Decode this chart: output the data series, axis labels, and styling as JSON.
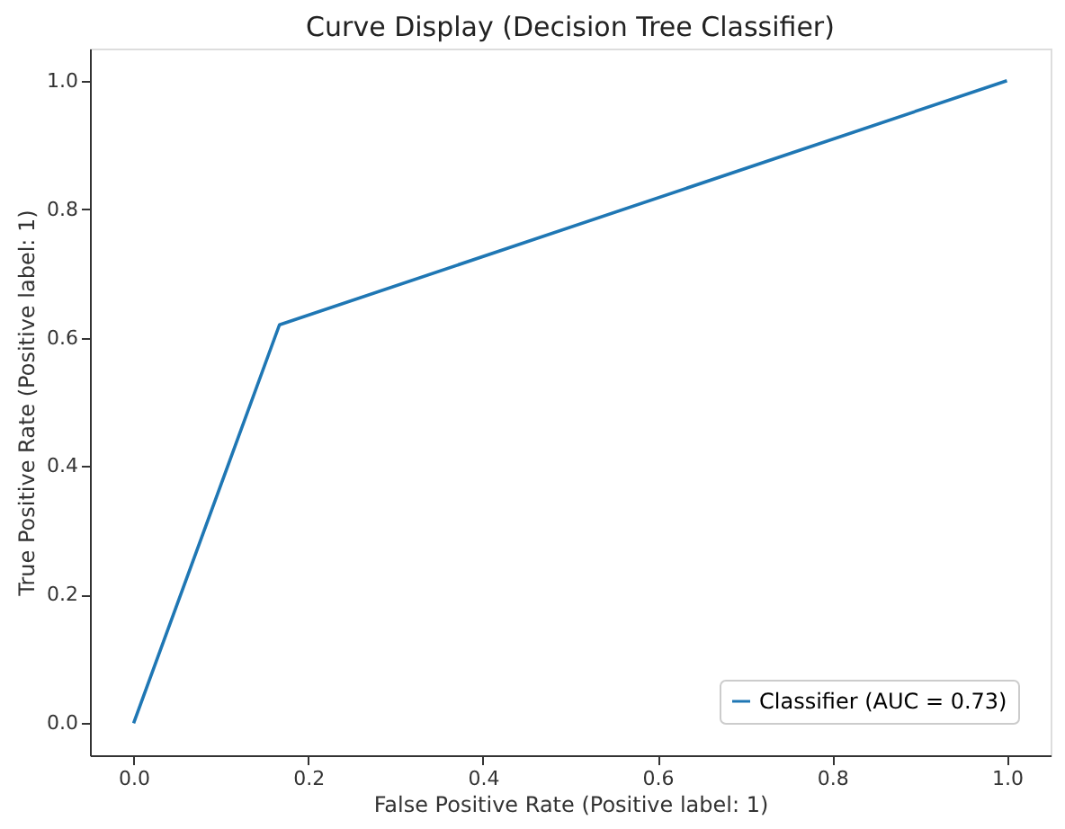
{
  "chart_data": {
    "type": "line",
    "title": "Curve Display (Decision Tree Classifier)",
    "xlabel": "False Positive Rate (Positive label: 1)",
    "ylabel": "True Positive Rate (Positive label: 1)",
    "x": [
      0,
      0.167,
      1
    ],
    "series": [
      {
        "name": "Classifier (AUC = 0.73)",
        "color": "#1f77b4",
        "values": [
          0,
          0.62,
          1
        ]
      }
    ],
    "xlim": [
      -0.05,
      1.05
    ],
    "ylim": [
      -0.05,
      1.05
    ],
    "xticks": [
      {
        "value": 0,
        "label": "0.0"
      },
      {
        "value": 0.2,
        "label": "0.2"
      },
      {
        "value": 0.4,
        "label": "0.4"
      },
      {
        "value": 0.6,
        "label": "0.6"
      },
      {
        "value": 0.8,
        "label": "0.8"
      },
      {
        "value": 1,
        "label": "1.0"
      }
    ],
    "yticks": [
      {
        "value": 0,
        "label": "0.0"
      },
      {
        "value": 0.2,
        "label": "0.2"
      },
      {
        "value": 0.4,
        "label": "0.4"
      },
      {
        "value": 0.6,
        "label": "0.6"
      },
      {
        "value": 0.8,
        "label": "0.8"
      },
      {
        "value": 1,
        "label": "1.0"
      }
    ],
    "grid": false,
    "legend": "bottom right",
    "marker": "none",
    "line_style": "solid"
  }
}
